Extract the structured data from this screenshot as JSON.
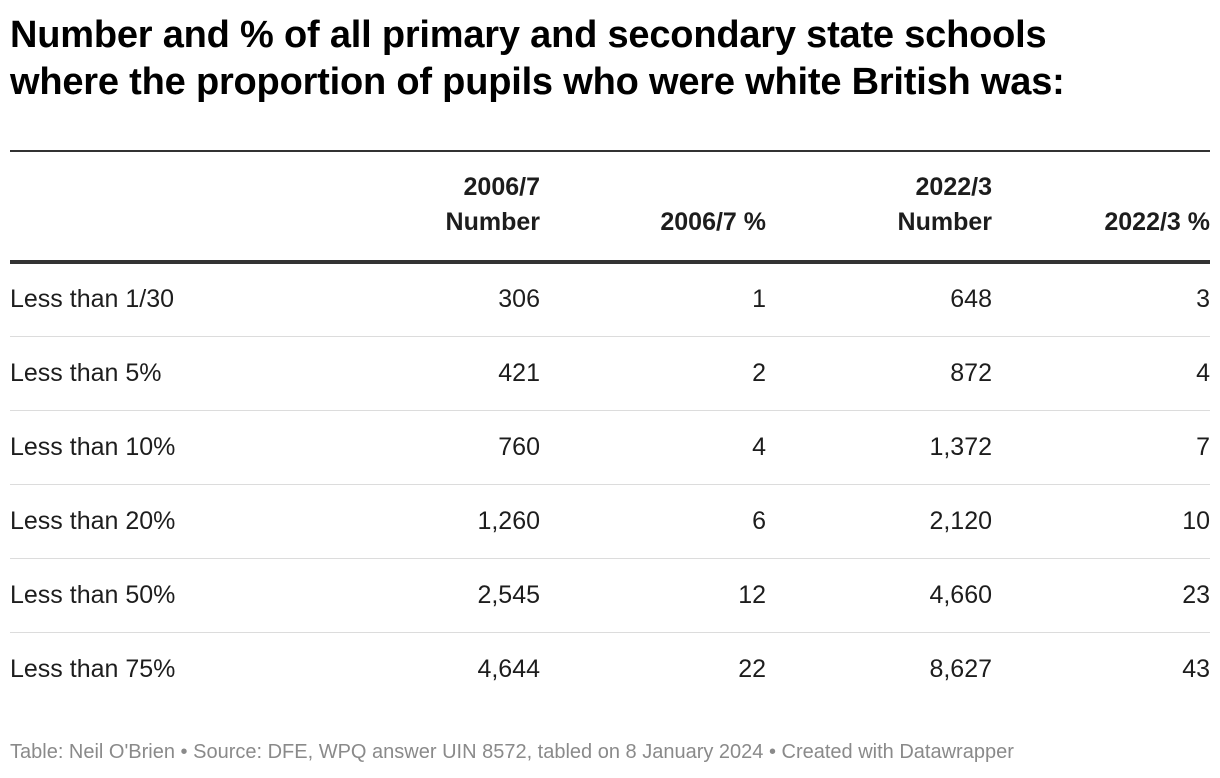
{
  "chart_data": {
    "type": "table",
    "title_lines": [
      "Number and % of all primary and secondary state schools",
      "where the proportion of pupils who were white British was:"
    ],
    "columns": [
      {
        "lines": [
          ""
        ]
      },
      {
        "lines": [
          "2006/7",
          "Number"
        ]
      },
      {
        "lines": [
          "2006/7 %"
        ]
      },
      {
        "lines": [
          "2022/3",
          "Number"
        ]
      },
      {
        "lines": [
          "2022/3 %"
        ]
      }
    ],
    "rows": [
      [
        "Less than 1/30",
        "306",
        "1",
        "648",
        "3"
      ],
      [
        "Less than 5%",
        "421",
        "2",
        "872",
        "4"
      ],
      [
        "Less than 10%",
        "760",
        "4",
        "1,372",
        "7"
      ],
      [
        "Less than 20%",
        "1,260",
        "6",
        "2,120",
        "10"
      ],
      [
        "Less than 50%",
        "2,545",
        "12",
        "4,660",
        "23"
      ],
      [
        "Less than 75%",
        "4,644",
        "22",
        "8,627",
        "43"
      ]
    ]
  },
  "footer": "Table: Neil O'Brien • Source: DFE, WPQ answer UIN 8572, tabled on 8 January 2024 • Created with Datawrapper",
  "colors": {
    "text": "#1d1d1d",
    "rule": "#333333",
    "row_divider": "#dcdcdc",
    "footer_text": "#8a8a8a"
  }
}
